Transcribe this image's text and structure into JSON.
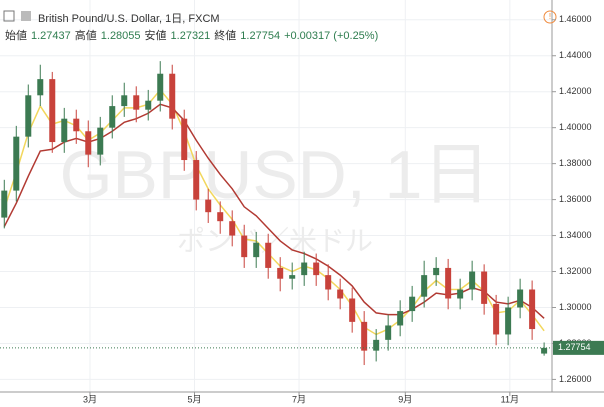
{
  "chart_data": {
    "type": "candlestick",
    "title": "British Pound/U.S. Dollar, 1日, FXCM",
    "ohlc_labels": [
      "始値",
      "高値",
      "安値",
      "終値"
    ],
    "ohlc_values": [
      1.27437,
      1.28055,
      1.27321,
      1.27754
    ],
    "change": "+0.00317 (+0.25%)",
    "watermark": "GBPUSD, 1日",
    "watermark_sub": "ポンド／米ドル",
    "up_color": "#3c7a52",
    "down_color": "#c8423b",
    "x": [
      10,
      17,
      24,
      31,
      38,
      45,
      52,
      59,
      66,
      73,
      80,
      87,
      94,
      101,
      108,
      115,
      122,
      129,
      136,
      143,
      150,
      157,
      164,
      171,
      178,
      185,
      192,
      199,
      206,
      213,
      220,
      227,
      234,
      241,
      248,
      255,
      262,
      269,
      276,
      283,
      290,
      297,
      304,
      311,
      318,
      325
    ],
    "open": [
      1.35,
      1.365,
      1.395,
      1.418,
      1.427,
      1.392,
      1.405,
      1.398,
      1.385,
      1.4,
      1.412,
      1.418,
      1.41,
      1.415,
      1.43,
      1.405,
      1.382,
      1.36,
      1.353,
      1.348,
      1.34,
      1.328,
      1.336,
      1.322,
      1.316,
      1.318,
      1.325,
      1.318,
      1.31,
      1.305,
      1.292,
      1.276,
      1.282,
      1.29,
      1.298,
      1.306,
      1.318,
      1.322,
      1.305,
      1.31,
      1.32,
      1.302,
      1.285,
      1.3,
      1.31,
      1.27437
    ],
    "high": [
      1.371,
      1.401,
      1.424,
      1.435,
      1.431,
      1.411,
      1.41,
      1.404,
      1.406,
      1.418,
      1.425,
      1.423,
      1.421,
      1.437,
      1.435,
      1.41,
      1.387,
      1.366,
      1.359,
      1.354,
      1.346,
      1.342,
      1.341,
      1.328,
      1.325,
      1.331,
      1.33,
      1.324,
      1.316,
      1.311,
      1.298,
      1.288,
      1.296,
      1.304,
      1.312,
      1.326,
      1.328,
      1.327,
      1.316,
      1.326,
      1.324,
      1.307,
      1.306,
      1.316,
      1.315,
      1.28055
    ],
    "low": [
      1.344,
      1.359,
      1.389,
      1.412,
      1.386,
      1.386,
      1.391,
      1.378,
      1.379,
      1.394,
      1.406,
      1.403,
      1.404,
      1.409,
      1.399,
      1.376,
      1.354,
      1.347,
      1.341,
      1.334,
      1.322,
      1.322,
      1.316,
      1.309,
      1.31,
      1.312,
      1.312,
      1.304,
      1.299,
      1.286,
      1.268,
      1.27,
      1.276,
      1.284,
      1.292,
      1.3,
      1.312,
      1.299,
      1.299,
      1.304,
      1.296,
      1.279,
      1.279,
      1.294,
      1.282,
      1.27321
    ],
    "close": [
      1.365,
      1.395,
      1.418,
      1.427,
      1.392,
      1.405,
      1.398,
      1.385,
      1.4,
      1.412,
      1.418,
      1.41,
      1.415,
      1.43,
      1.405,
      1.382,
      1.36,
      1.353,
      1.348,
      1.34,
      1.328,
      1.336,
      1.322,
      1.316,
      1.318,
      1.325,
      1.318,
      1.31,
      1.305,
      1.292,
      1.276,
      1.282,
      1.29,
      1.298,
      1.306,
      1.318,
      1.322,
      1.305,
      1.31,
      1.32,
      1.302,
      1.285,
      1.3,
      1.31,
      1.288,
      1.27754
    ],
    "overlays": [
      {
        "color": "#f2d75c",
        "values": [
          1.355,
          1.375,
          1.397,
          1.412,
          1.402,
          1.404,
          1.401,
          1.393,
          1.397,
          1.404,
          1.411,
          1.411,
          1.413,
          1.421,
          1.413,
          1.398,
          1.379,
          1.366,
          1.357,
          1.349,
          1.338,
          1.337,
          1.33,
          1.323,
          1.32,
          1.323,
          1.321,
          1.316,
          1.31,
          1.301,
          1.289,
          1.285,
          1.288,
          1.293,
          1.3,
          1.309,
          1.315,
          1.31,
          1.31,
          1.315,
          1.309,
          1.297,
          1.298,
          1.304,
          1.296,
          1.287
        ]
      },
      {
        "color": "#b23a33",
        "values": [
          1.345,
          1.358,
          1.373,
          1.387,
          1.388,
          1.392,
          1.394,
          1.392,
          1.394,
          1.398,
          1.403,
          1.405,
          1.408,
          1.413,
          1.411,
          1.404,
          1.393,
          1.383,
          1.374,
          1.366,
          1.356,
          1.351,
          1.344,
          1.337,
          1.332,
          1.33,
          1.327,
          1.323,
          1.318,
          1.312,
          1.303,
          1.297,
          1.296,
          1.296,
          1.299,
          1.303,
          1.308,
          1.307,
          1.308,
          1.311,
          1.309,
          1.303,
          1.302,
          1.304,
          1.3,
          1.294
        ]
      }
    ],
    "xlim": [
      7.5,
      329.6
    ],
    "ylim": [
      1.253,
      1.471
    ],
    "xticks": [
      {
        "value": 60,
        "label": "3月"
      },
      {
        "value": 121,
        "label": "5月"
      },
      {
        "value": 182,
        "label": "7月"
      },
      {
        "value": 244,
        "label": "9月"
      },
      {
        "value": 305,
        "label": "11月"
      }
    ],
    "yticks": [
      {
        "value": 1.26,
        "label": "1.26000"
      },
      {
        "value": 1.28,
        "label": "1.28000"
      },
      {
        "value": 1.3,
        "label": "1.30000"
      },
      {
        "value": 1.32,
        "label": "1.32000"
      },
      {
        "value": 1.34,
        "label": "1.34000"
      },
      {
        "value": 1.36,
        "label": "1.36000"
      },
      {
        "value": 1.38,
        "label": "1.38000"
      },
      {
        "value": 1.4,
        "label": "1.40000"
      },
      {
        "value": 1.42,
        "label": "1.42000"
      },
      {
        "value": 1.44,
        "label": "1.44000"
      },
      {
        "value": 1.46,
        "label": "1.46000"
      }
    ],
    "grid": true
  }
}
